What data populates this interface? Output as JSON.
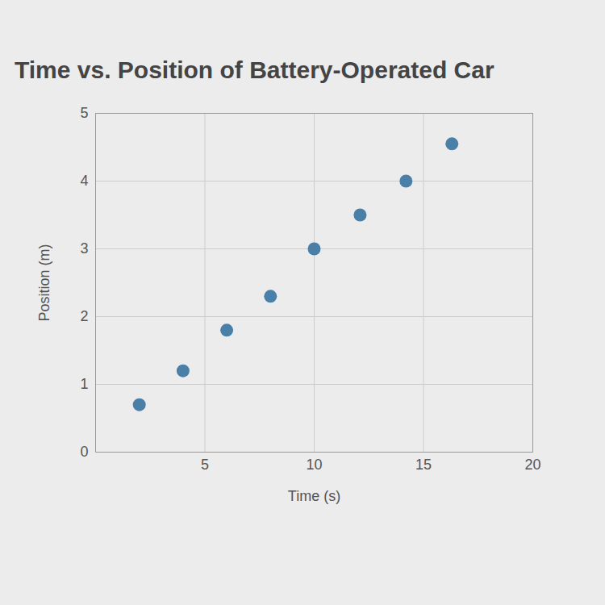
{
  "chart_data": {
    "type": "scatter",
    "title": "Time vs. Position of Battery-Operated Car",
    "x_label": "Time (s)",
    "y_label": "Position (m)",
    "x": [
      2,
      4,
      6,
      8,
      10,
      12.1,
      14.2,
      16.3
    ],
    "values": [
      0.7,
      1.2,
      1.8,
      2.3,
      3.0,
      3.5,
      4.0,
      4.55
    ],
    "color": "#4a7fa8",
    "marker": "circle",
    "xlim": [
      0,
      20
    ],
    "xticks": [
      5,
      10,
      15,
      20
    ],
    "ylim": [
      0,
      5
    ],
    "yticks": [
      0,
      1,
      2,
      3,
      4,
      5
    ],
    "grid": true
  }
}
